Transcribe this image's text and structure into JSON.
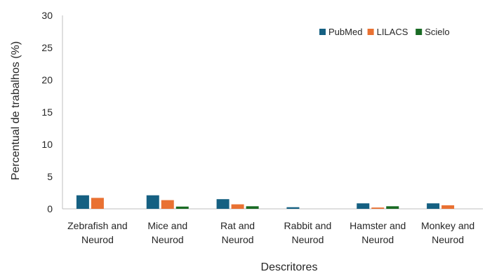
{
  "chart_data": {
    "type": "bar",
    "xlabel": "Descritores",
    "ylabel": "Percentual de trabalhos (%)",
    "ylim": [
      0,
      30
    ],
    "yticks": [
      0,
      5,
      10,
      15,
      20,
      25,
      30
    ],
    "grid": false,
    "legend_position": "top-right",
    "categories": [
      [
        "Zebrafish and",
        "Neurod"
      ],
      [
        "Mice and",
        "Neurod"
      ],
      [
        "Rat and",
        "Neurod"
      ],
      [
        "Rabbit and",
        "Neurod"
      ],
      [
        "Hamster and",
        "Neurod"
      ],
      [
        "Monkey and",
        "Neurod"
      ]
    ],
    "series": [
      {
        "name": "PubMed",
        "color": "#156082",
        "values": [
          2.1,
          2.1,
          1.5,
          0.25,
          0.85,
          0.85
        ]
      },
      {
        "name": "LILACS",
        "color": "#e97132",
        "values": [
          1.7,
          1.35,
          0.7,
          0.0,
          0.2,
          0.55
        ]
      },
      {
        "name": "Scielo",
        "color": "#196b24",
        "values": [
          0.0,
          0.35,
          0.4,
          0.0,
          0.4,
          0.0
        ]
      }
    ]
  }
}
